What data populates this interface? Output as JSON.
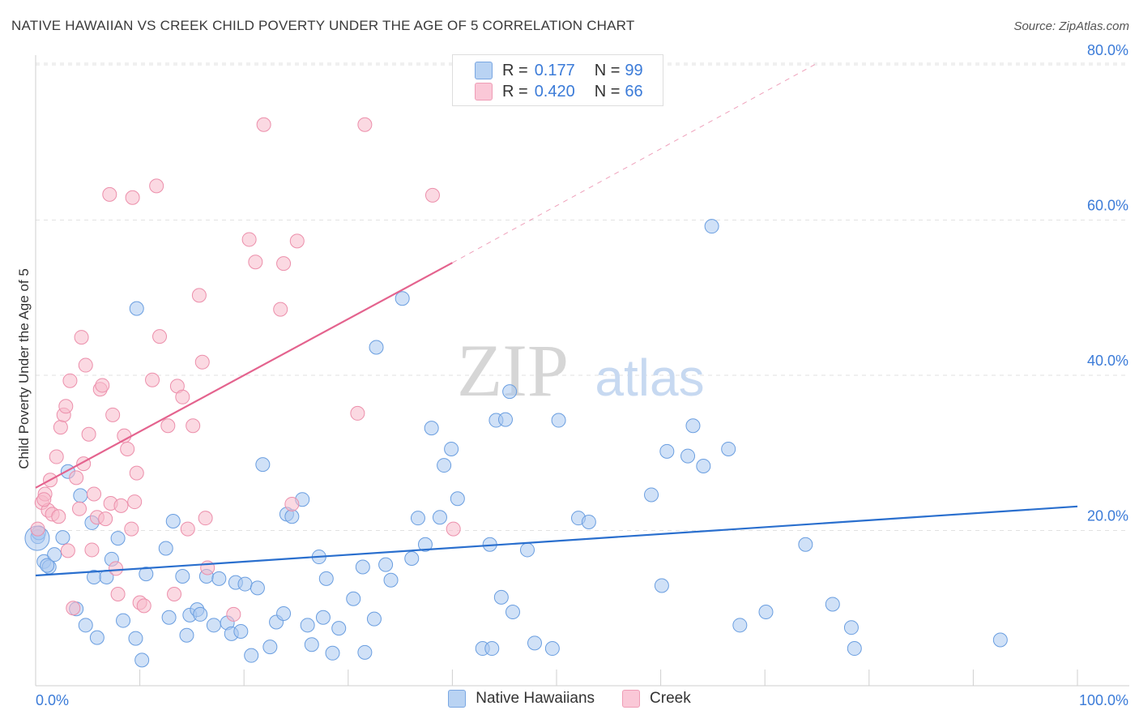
{
  "title": "NATIVE HAWAIIAN VS CREEK CHILD POVERTY UNDER THE AGE OF 5 CORRELATION CHART",
  "source": "Source: ZipAtlas.com",
  "watermark": {
    "zip": "ZIP",
    "atlas": "atlas"
  },
  "legend_top": {
    "rows": [
      {
        "r_label": "R = ",
        "r_value": "0.177",
        "n_label": "N = ",
        "n_value": "99"
      },
      {
        "r_label": "R = ",
        "r_value": "0.420",
        "n_label": "N = ",
        "n_value": "66"
      }
    ]
  },
  "colors": {
    "blue_fill": "#a9c8f0",
    "blue_stroke": "#6a9ee0",
    "blue_line": "#2a6fce",
    "pink_fill": "#f7b9cb",
    "pink_stroke": "#ec8fab",
    "pink_line": "#e4638e",
    "tick_label": "#3b7bd8",
    "grid": "#e2e2e2"
  },
  "chart_data": {
    "type": "scatter",
    "title": "NATIVE HAWAIIAN VS CREEK CHILD POVERTY UNDER THE AGE OF 5 CORRELATION CHART",
    "xlabel": "",
    "ylabel": "Child Poverty Under the Age of 5",
    "xlim": [
      0,
      100
    ],
    "ylim": [
      0,
      82
    ],
    "x_tick_labels": [
      "0.0%",
      "100.0%"
    ],
    "y_ticks": [
      20,
      40,
      60,
      80
    ],
    "y_tick_labels": [
      "20.0%",
      "40.0%",
      "60.0%",
      "80.0%"
    ],
    "grid": true,
    "legend_position": "bottom-center",
    "series": [
      {
        "name": "Native Hawaiians",
        "color": "#a9c8f0",
        "trend": {
          "x0": 0,
          "y0": 14.2,
          "x1": 100,
          "y1": 23.1
        },
        "points": [
          [
            0.2,
            19.2
          ],
          [
            0.8,
            16
          ],
          [
            1.3,
            15.3
          ],
          [
            1.8,
            16.9
          ],
          [
            2.6,
            19.1
          ],
          [
            3.1,
            27.6
          ],
          [
            3.9,
            9.9
          ],
          [
            4.3,
            24.5
          ],
          [
            4.8,
            7.8
          ],
          [
            5.4,
            21
          ],
          [
            5.6,
            14
          ],
          [
            5.9,
            6.2
          ],
          [
            6.8,
            14
          ],
          [
            7.3,
            16.3
          ],
          [
            7.9,
            19
          ],
          [
            8.4,
            8.4
          ],
          [
            9.6,
            6.1
          ],
          [
            9.7,
            48.6
          ],
          [
            10.2,
            3.3
          ],
          [
            10.6,
            14.4
          ],
          [
            12.5,
            17.7
          ],
          [
            12.8,
            8.8
          ],
          [
            13.2,
            21.2
          ],
          [
            14.1,
            14.1
          ],
          [
            14.5,
            6.5
          ],
          [
            14.8,
            9.1
          ],
          [
            15.5,
            9.8
          ],
          [
            15.8,
            9.2
          ],
          [
            16.4,
            14.1
          ],
          [
            17.1,
            7.8
          ],
          [
            17.6,
            13.8
          ],
          [
            18.4,
            8.1
          ],
          [
            18.8,
            6.7
          ],
          [
            19.2,
            13.3
          ],
          [
            19.7,
            7
          ],
          [
            20.1,
            13.1
          ],
          [
            20.7,
            3.9
          ],
          [
            21.3,
            12.6
          ],
          [
            21.8,
            28.5
          ],
          [
            22.5,
            5
          ],
          [
            23.1,
            8.2
          ],
          [
            23.8,
            9.3
          ],
          [
            24.1,
            22.1
          ],
          [
            24.6,
            21.8
          ],
          [
            25.6,
            24
          ],
          [
            26.1,
            7.8
          ],
          [
            26.5,
            5.3
          ],
          [
            27.2,
            16.6
          ],
          [
            27.6,
            8.8
          ],
          [
            27.9,
            13.8
          ],
          [
            28.5,
            4.2
          ],
          [
            29.1,
            7.4
          ],
          [
            30.5,
            11.2
          ],
          [
            31.4,
            15.3
          ],
          [
            31.6,
            4.3
          ],
          [
            32.5,
            8.6
          ],
          [
            32.7,
            43.6
          ],
          [
            33.6,
            15.6
          ],
          [
            34.1,
            13.6
          ],
          [
            35.2,
            49.9
          ],
          [
            36.1,
            16.4
          ],
          [
            36.7,
            21.6
          ],
          [
            37.4,
            18.2
          ],
          [
            38,
            33.2
          ],
          [
            38.8,
            21.7
          ],
          [
            39.2,
            28.4
          ],
          [
            39.9,
            30.5
          ],
          [
            40.5,
            24.1
          ],
          [
            42.9,
            4.8
          ],
          [
            43.6,
            18.2
          ],
          [
            43.8,
            4.8
          ],
          [
            44.2,
            34.2
          ],
          [
            44.7,
            11.4
          ],
          [
            45.1,
            34.3
          ],
          [
            45.5,
            37.9
          ],
          [
            45.8,
            9.5
          ],
          [
            47.2,
            17.5
          ],
          [
            47.9,
            5.5
          ],
          [
            49.6,
            4.8
          ],
          [
            50.2,
            34.2
          ],
          [
            52.1,
            21.6
          ],
          [
            53.1,
            21.1
          ],
          [
            59.1,
            24.6
          ],
          [
            60.1,
            12.9
          ],
          [
            60.6,
            30.2
          ],
          [
            62.6,
            29.6
          ],
          [
            63.1,
            33.5
          ],
          [
            64.1,
            28.3
          ],
          [
            64.9,
            59.2
          ],
          [
            66.5,
            30.5
          ],
          [
            67.6,
            7.8
          ],
          [
            70.1,
            9.5
          ],
          [
            73.9,
            18.2
          ],
          [
            76.5,
            10.5
          ],
          [
            78.3,
            7.5
          ],
          [
            78.6,
            4.8
          ],
          [
            92.6,
            5.9
          ],
          [
            0.3,
            19.7
          ],
          [
            1.1,
            15.5
          ]
        ]
      },
      {
        "name": "Creek",
        "color": "#f7b9cb",
        "trend": {
          "x0": 0,
          "y0": 25.5,
          "x1": 40,
          "y1": 54.5,
          "dash_to_x": 75,
          "dash_to_y": 80.2
        },
        "points": [
          [
            0.2,
            20.2
          ],
          [
            0.6,
            23.6
          ],
          [
            0.9,
            24.7
          ],
          [
            1.2,
            22.6
          ],
          [
            1.4,
            26.5
          ],
          [
            1.6,
            22.1
          ],
          [
            2,
            29.5
          ],
          [
            2.2,
            21.8
          ],
          [
            2.4,
            33.3
          ],
          [
            2.7,
            34.9
          ],
          [
            2.9,
            36
          ],
          [
            3.1,
            17.4
          ],
          [
            3.3,
            39.3
          ],
          [
            3.6,
            10
          ],
          [
            3.9,
            26.8
          ],
          [
            4.2,
            22.8
          ],
          [
            4.4,
            44.9
          ],
          [
            4.6,
            28.6
          ],
          [
            4.8,
            41.3
          ],
          [
            5.1,
            32.4
          ],
          [
            5.4,
            17.5
          ],
          [
            5.6,
            24.7
          ],
          [
            5.9,
            21.7
          ],
          [
            6.2,
            38.2
          ],
          [
            6.4,
            38.7
          ],
          [
            6.7,
            21.5
          ],
          [
            7.1,
            63.3
          ],
          [
            7.2,
            23.5
          ],
          [
            7.4,
            34.9
          ],
          [
            7.7,
            15.1
          ],
          [
            7.9,
            11.8
          ],
          [
            8.2,
            23.2
          ],
          [
            8.5,
            32.2
          ],
          [
            8.8,
            30.5
          ],
          [
            9.2,
            20.2
          ],
          [
            9.3,
            62.9
          ],
          [
            9.5,
            23.7
          ],
          [
            9.7,
            27.4
          ],
          [
            10,
            10.7
          ],
          [
            10.4,
            10.3
          ],
          [
            11.2,
            39.4
          ],
          [
            11.6,
            64.4
          ],
          [
            11.9,
            45
          ],
          [
            12.7,
            33.5
          ],
          [
            13.3,
            11.8
          ],
          [
            13.6,
            38.6
          ],
          [
            14.1,
            37.2
          ],
          [
            14.6,
            20.2
          ],
          [
            15.1,
            33.5
          ],
          [
            15.7,
            50.3
          ],
          [
            16,
            41.7
          ],
          [
            16.3,
            21.6
          ],
          [
            16.5,
            15.2
          ],
          [
            19,
            9.2
          ],
          [
            20.5,
            57.5
          ],
          [
            21.1,
            54.6
          ],
          [
            21.9,
            72.3
          ],
          [
            23.5,
            48.5
          ],
          [
            23.8,
            54.4
          ],
          [
            24.6,
            23.4
          ],
          [
            25.1,
            57.3
          ],
          [
            30.9,
            35.1
          ],
          [
            31.6,
            72.3
          ],
          [
            38.1,
            63.2
          ],
          [
            40.1,
            20.2
          ],
          [
            0.8,
            24
          ]
        ]
      }
    ]
  }
}
